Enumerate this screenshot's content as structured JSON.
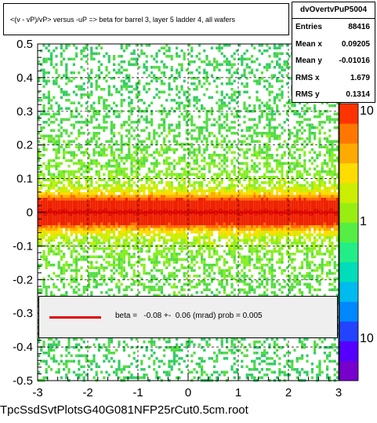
{
  "title": "<(v - vP)/vP> versus -uP => beta for barrel 3, layer 5 ladder 4, all wafers",
  "stats": {
    "name": "dvOvertvPuP5004",
    "rows": [
      {
        "label": "Entries",
        "value": "88416"
      },
      {
        "label": "Mean x",
        "value": "0.09205"
      },
      {
        "label": "Mean y",
        "value": "-0.01016"
      },
      {
        "label": "RMS x",
        "value": "1.679"
      },
      {
        "label": "RMS y",
        "value": "0.1314"
      }
    ]
  },
  "legend": {
    "text": "beta =   -0.08 +-  0.06 (mrad) prob = 0.005",
    "color": "#e00000"
  },
  "file_label": "TpcSsdSvtPlotsG40G081NFP25rCut0.5cm.root",
  "chart_data": {
    "type": "heatmap",
    "xlim": [
      -3,
      3
    ],
    "ylim": [
      -0.5,
      0.5
    ],
    "x_ticks": [
      "-3",
      "-2",
      "-1",
      "0",
      "1",
      "2",
      "3"
    ],
    "y_ticks": [
      "-0.5",
      "-0.4",
      "-0.3",
      "-0.2",
      "-0.1",
      "0",
      "0.1",
      "0.2",
      "0.3",
      "0.4",
      "0.5"
    ],
    "colorbar": {
      "scale": "log",
      "ticks": [
        "10",
        "1",
        "10"
      ]
    },
    "grid": true,
    "profile_points": {
      "x": [
        -2.95,
        -2.85,
        -2.75,
        -2.65,
        -2.55,
        -2.45,
        -2.35,
        -2.25,
        -2.15,
        -2.05,
        -1.95,
        -1.85,
        -1.75,
        -1.65,
        -1.55,
        -1.45,
        -1.35,
        -1.25,
        -1.15,
        -1.05,
        -0.95,
        -0.85,
        -0.75,
        -0.65,
        -0.55,
        -0.45,
        -0.35,
        -0.25,
        -0.15,
        -0.05,
        0.05,
        0.15,
        0.25,
        0.35,
        0.45,
        0.55,
        0.65,
        0.75,
        0.85,
        0.95,
        1.05,
        1.15,
        1.25,
        1.35,
        1.45,
        1.55,
        1.65,
        1.75,
        1.85,
        1.95,
        2.05,
        2.15,
        2.25,
        2.35,
        2.45,
        2.55,
        2.65,
        2.75,
        2.85,
        2.95
      ],
      "y": [
        0.002,
        -0.003,
        0.004,
        -0.002,
        0.001,
        0.003,
        -0.004,
        0.002,
        0.0,
        -0.001,
        0.003,
        -0.002,
        0.001,
        0.004,
        -0.003,
        0.002,
        -0.001,
        0.0,
        0.003,
        -0.002,
        0.001,
        -0.003,
        0.002,
        0.0,
        -0.001,
        0.003,
        -0.002,
        0.001,
        0.0,
        -0.002,
        0.002,
        0.001,
        -0.003,
        0.0,
        0.002,
        -0.001,
        0.003,
        -0.002,
        0.001,
        0.0,
        -0.003,
        0.002,
        0.001,
        -0.002,
        0.0,
        0.003,
        -0.001,
        0.002,
        -0.003,
        0.001,
        0.0,
        0.002,
        -0.002,
        0.001,
        -0.004,
        0.003,
        0.0,
        -0.002,
        0.004,
        -0.003
      ]
    },
    "fit_line": {
      "slope": -8e-05,
      "intercept": 0.0,
      "color": "#e00000"
    }
  }
}
